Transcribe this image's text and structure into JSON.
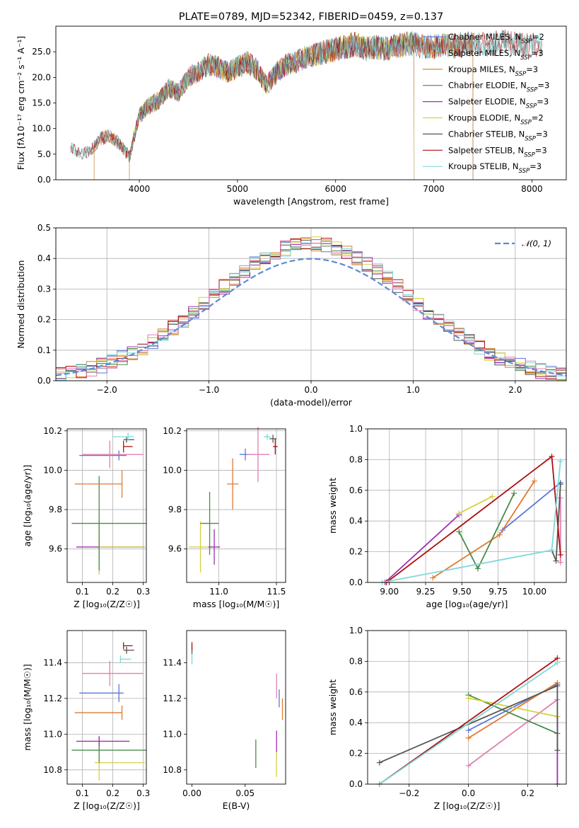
{
  "figure": {
    "title": "PLATE=0789, MJD=52342, FIBERID=0459, z=0.137"
  },
  "chart_data": [
    {
      "type": "line",
      "panel": "spectrum",
      "title": "PLATE=0789, MJD=52342, FIBERID=0459, z=0.137",
      "xlabel": "wavelength [Angstrom, rest frame]",
      "ylabel": "Flux [fλ10⁻¹⁷ erg cm⁻² s⁻¹ A⁻¹]",
      "xlim": [
        3150,
        8350
      ],
      "ylim": [
        0,
        30
      ],
      "xticks": [
        4000,
        5000,
        6000,
        7000,
        8000
      ],
      "yticks": [
        0,
        5,
        10,
        15,
        20,
        25
      ],
      "grid": false,
      "legend_position": "top-right",
      "x_anchor": [
        3300,
        3400,
        3500,
        3600,
        3700,
        3800,
        3900,
        4000,
        4100,
        4200,
        4300,
        4400,
        4500,
        4600,
        4700,
        4800,
        4900,
        5000,
        5100,
        5200,
        5300,
        5400,
        5500,
        5600,
        5700,
        5800,
        5900,
        6000,
        6100,
        6200,
        6300,
        6400,
        6500,
        6600,
        6700,
        6800,
        6900,
        7000,
        7100,
        7200,
        7300,
        7400,
        7500,
        7600,
        7700,
        7800,
        7900,
        8000,
        8100
      ],
      "y_anchor": [
        6.5,
        5.0,
        5.5,
        8.0,
        8.5,
        7.0,
        4.5,
        12.5,
        14.5,
        15.5,
        18.0,
        17.0,
        20.0,
        21.0,
        22.5,
        22.0,
        21.0,
        22.0,
        23.0,
        21.5,
        18.5,
        21.0,
        22.5,
        23.0,
        24.0,
        24.5,
        25.0,
        25.5,
        26.0,
        26.5,
        25.5,
        26.0,
        25.5,
        26.0,
        26.5,
        26.5,
        26.0,
        26.0,
        26.5,
        26.0,
        26.5,
        26.5,
        26.5,
        26.5,
        27.0,
        26.5,
        26.5,
        26.5,
        26.0
      ],
      "series": [
        {
          "name": "Chabrier MILES, N_SSP=2",
          "color": "#5a78d6",
          "x_range": [
            3540,
            7400
          ]
        },
        {
          "name": "Salpeter MILES, N_SSP=3",
          "color": "#e07a2f",
          "x_range": [
            3540,
            7400
          ]
        },
        {
          "name": "Kroupa MILES, N_SSP=3",
          "color": "#c8802a",
          "x_range": [
            3540,
            7400
          ]
        },
        {
          "name": "Chabrier ELODIE, N_SSP=3",
          "color": "#4a8a4a",
          "x_range": [
            3900,
            6800
          ]
        },
        {
          "name": "Salpeter ELODIE, N_SSP=3",
          "color": "#9b30b0",
          "x_range": [
            3900,
            6800
          ]
        },
        {
          "name": "Kroupa ELODIE, N_SSP=2",
          "color": "#d6d040",
          "x_range": [
            3900,
            6800
          ]
        },
        {
          "name": "Chabrier STELIB, N_SSP=3",
          "color": "#555555",
          "x_range": [
            3300,
            8100
          ]
        },
        {
          "name": "Salpeter STELIB, N_SSP=3",
          "color": "#b01010",
          "x_range": [
            3300,
            8100
          ]
        },
        {
          "name": "Kroupa STELIB, N_SSP=3",
          "color": "#7fd8d8",
          "x_range": [
            3300,
            8100
          ]
        }
      ],
      "legend_entries": [
        {
          "label": "Chabrier MILES, N",
          "sub": "SSP",
          "tail": "=2",
          "color": "#5a78d6"
        },
        {
          "label": "Salpeter MILES, N",
          "sub": "SSP",
          "tail": "=3",
          "color": "#e07a2f"
        },
        {
          "label": "Kroupa MILES, N",
          "sub": "SSP",
          "tail": "=3",
          "color": "#c8802a"
        },
        {
          "label": "Chabrier ELODIE, N",
          "sub": "SSP",
          "tail": "=3",
          "color": "#4a8a4a"
        },
        {
          "label": "Salpeter ELODIE, N",
          "sub": "SSP",
          "tail": "=3",
          "color": "#9b30b0"
        },
        {
          "label": "Kroupa ELODIE, N",
          "sub": "SSP",
          "tail": "=2",
          "color": "#d6d040"
        },
        {
          "label": "Chabrier STELIB, N",
          "sub": "SSP",
          "tail": "=3",
          "color": "#555555"
        },
        {
          "label": "Salpeter STELIB, N",
          "sub": "SSP",
          "tail": "=3",
          "color": "#b01010"
        },
        {
          "label": "Kroupa STELIB, N",
          "sub": "SSP",
          "tail": "=3",
          "color": "#7fd8d8"
        }
      ]
    },
    {
      "type": "histogram",
      "panel": "residuals",
      "xlabel": "(data-model)/error",
      "ylabel": "Normed distribution",
      "xlim": [
        -2.5,
        2.5
      ],
      "ylim": [
        0,
        0.5
      ],
      "xticks": [
        -2,
        -1,
        0,
        1,
        2
      ],
      "yticks": [
        0.0,
        0.1,
        0.2,
        0.3,
        0.4,
        0.5
      ],
      "grid": true,
      "legend_position": "top-right",
      "legend_entry": "𝒩(0, 1)",
      "reference_curve": {
        "name": "𝒩(0, 1)",
        "color": "#5a8ad6",
        "mean": 0,
        "sigma": 1
      },
      "bin_width": 0.1,
      "bin_range": [
        -2.5,
        2.5
      ],
      "series_colors": [
        "#5a78d6",
        "#e07a2f",
        "#4a8a4a",
        "#9b30b0",
        "#d6d040",
        "#555555",
        "#b01010",
        "#7fd8d8",
        "#e080b0"
      ]
    },
    {
      "type": "scatter",
      "panel": "Z-age",
      "xlabel": "Z [log₁₀(Z/Z☉)]",
      "ylabel": "age  [log₁₀(age/yr)]",
      "xlim": [
        0.05,
        0.31
      ],
      "ylim": [
        9.43,
        10.21
      ],
      "xticks": [
        0.1,
        0.2,
        0.3
      ],
      "yticks": [
        9.6,
        9.8,
        10.0,
        10.2
      ],
      "grid": true,
      "errorbars": [
        {
          "x": 0.155,
          "y": 9.61,
          "xerr": [
            0.075,
            0.15
          ],
          "yerr": 0.06,
          "color": "#9b30b0"
        },
        {
          "x": 0.155,
          "y": 9.61,
          "xerr": [
            0.0,
            0.15
          ],
          "yerr": 0.14,
          "color": "#d6d040"
        },
        {
          "x": 0.155,
          "y": 9.73,
          "xerr": [
            0.09,
            0.155
          ],
          "yerr": 0.24,
          "color": "#4a8a4a"
        },
        {
          "x": 0.23,
          "y": 9.93,
          "xerr": [
            0.155,
            0.0
          ],
          "yerr": 0.07,
          "color": "#e07a2f"
        },
        {
          "x": 0.22,
          "y": 10.075,
          "xerr": [
            0.13,
            0.025
          ],
          "yerr": 0.025,
          "color": "#5a78d6"
        },
        {
          "x": 0.19,
          "y": 10.08,
          "xerr": [
            0.09,
            0.11
          ],
          "yerr": 0.07,
          "color": "#e080b0"
        },
        {
          "x": 0.235,
          "y": 10.12,
          "xerr": [
            0.0,
            0.03
          ],
          "yerr": 0.03,
          "color": "#b01010"
        },
        {
          "x": 0.245,
          "y": 10.155,
          "xerr": [
            0.01,
            0.025
          ],
          "yerr": 0.015,
          "color": "#555555"
        },
        {
          "x": 0.25,
          "y": 10.17,
          "xerr": [
            0.05,
            0.02
          ],
          "yerr": 0.02,
          "color": "#7fd8d8"
        }
      ]
    },
    {
      "type": "scatter",
      "panel": "mass-age",
      "xlabel": "mass [log₁₀(M/M☉)]",
      "ylabel": "",
      "xlim": [
        10.72,
        11.58
      ],
      "ylim": [
        9.43,
        10.21
      ],
      "xticks": [
        11.0,
        11.5
      ],
      "yticks": [
        9.6,
        9.8,
        10.0,
        10.2
      ],
      "grid": true,
      "errorbars": [
        {
          "x": 10.84,
          "y": 9.61,
          "xerr": 0.1,
          "yerr": 0.13,
          "color": "#d6d040"
        },
        {
          "x": 10.92,
          "y": 9.73,
          "xerr": 0.08,
          "yerr": 0.16,
          "color": "#4a8a4a"
        },
        {
          "x": 10.96,
          "y": 9.61,
          "xerr": 0.05,
          "yerr": 0.09,
          "color": "#9b30b0"
        },
        {
          "x": 11.12,
          "y": 9.93,
          "xerr": 0.05,
          "yerr": 0.13,
          "color": "#e07a2f"
        },
        {
          "x": 11.23,
          "y": 10.08,
          "xerr": 0.05,
          "yerr": 0.03,
          "color": "#5a78d6"
        },
        {
          "x": 11.34,
          "y": 10.08,
          "xerr": 0.1,
          "yerr": 0.14,
          "color": "#e080b0"
        },
        {
          "x": 11.42,
          "y": 10.17,
          "xerr": 0.03,
          "yerr": 0.015,
          "color": "#7fd8d8"
        },
        {
          "x": 11.47,
          "y": 10.16,
          "xerr": 0.03,
          "yerr": 0.02,
          "color": "#555555"
        },
        {
          "x": 11.49,
          "y": 10.12,
          "xerr": 0.02,
          "yerr": 0.04,
          "color": "#b01010"
        }
      ]
    },
    {
      "type": "line",
      "panel": "age-massweight",
      "xlabel": "age  [log₁₀(age/yr)]",
      "ylabel": "mass weight",
      "xlim": [
        8.85,
        10.22
      ],
      "ylim": [
        0,
        1
      ],
      "xticks": [
        9.0,
        9.25,
        9.5,
        9.75,
        10.0
      ],
      "yticks": [
        0.0,
        0.2,
        0.4,
        0.6,
        0.8,
        1.0
      ],
      "grid": true,
      "series": [
        {
          "name": "Chabrier MILES",
          "color": "#5a78d6",
          "x": [
            9.78,
            10.18
          ],
          "y": [
            0.34,
            0.65
          ]
        },
        {
          "name": "Salpeter MILES",
          "color": "#e07a2f",
          "x": [
            9.3,
            9.76,
            10.0
          ],
          "y": [
            0.03,
            0.31,
            0.66
          ]
        },
        {
          "name": "Kroupa MILES",
          "color": "#e080b0",
          "x": [
            10.18,
            10.18
          ],
          "y": [
            0.13,
            0.55
          ]
        },
        {
          "name": "Chabrier ELODIE",
          "color": "#4a8a4a",
          "x": [
            9.48,
            9.61,
            9.86
          ],
          "y": [
            0.33,
            0.09,
            0.58
          ]
        },
        {
          "name": "Salpeter ELODIE",
          "color": "#9b30b0",
          "x": [
            8.97,
            9.48
          ],
          "y": [
            0.0,
            0.44
          ]
        },
        {
          "name": "Kroupa ELODIE",
          "color": "#d6d040",
          "x": [
            9.48,
            9.71
          ],
          "y": [
            0.45,
            0.56
          ]
        },
        {
          "name": "Chabrier STELIB",
          "color": "#555555",
          "x": [
            10.12,
            10.15,
            10.18
          ],
          "y": [
            0.21,
            0.14,
            0.64
          ]
        },
        {
          "name": "Salpeter STELIB",
          "color": "#b01010",
          "x": [
            8.98,
            10.12,
            10.18
          ],
          "y": [
            0.0,
            0.82,
            0.18
          ]
        },
        {
          "name": "Kroupa STELIB",
          "color": "#7fd8d8",
          "x": [
            8.95,
            10.12,
            10.18
          ],
          "y": [
            0.0,
            0.21,
            0.79
          ]
        }
      ]
    },
    {
      "type": "scatter",
      "panel": "Z-mass",
      "xlabel": "Z [log₁₀(Z/Z☉)]",
      "ylabel": "mass [log₁₀(M/M☉)]",
      "xlim": [
        0.05,
        0.31
      ],
      "ylim": [
        10.72,
        11.58
      ],
      "xticks": [
        0.1,
        0.2,
        0.3
      ],
      "yticks": [
        10.8,
        11.0,
        11.2,
        11.4
      ],
      "grid": true,
      "errorbars": [
        {
          "x": 0.155,
          "y": 10.84,
          "xerr": [
            0.015,
            0.15
          ],
          "yerr": 0.1,
          "color": "#d6d040"
        },
        {
          "x": 0.155,
          "y": 10.91,
          "xerr": [
            0.09,
            0.155
          ],
          "yerr": 0.07,
          "color": "#4a8a4a"
        },
        {
          "x": 0.155,
          "y": 10.96,
          "xerr": [
            0.075,
            0.1
          ],
          "yerr": 0.03,
          "color": "#9b30b0"
        },
        {
          "x": 0.23,
          "y": 11.12,
          "xerr": [
            0.155,
            0.0
          ],
          "yerr": 0.04,
          "color": "#e07a2f"
        },
        {
          "x": 0.22,
          "y": 11.23,
          "xerr": [
            0.13,
            0.015
          ],
          "yerr": 0.05,
          "color": "#5a78d6"
        },
        {
          "x": 0.19,
          "y": 11.34,
          "xerr": [
            0.09,
            0.11
          ],
          "yerr": 0.07,
          "color": "#e080b0"
        },
        {
          "x": 0.225,
          "y": 11.42,
          "xerr": [
            0.0,
            0.035
          ],
          "yerr": 0.02,
          "color": "#7fd8d8"
        },
        {
          "x": 0.245,
          "y": 11.47,
          "xerr": [
            0.01,
            0.025
          ],
          "yerr": 0.02,
          "color": "#555555"
        },
        {
          "x": 0.235,
          "y": 11.495,
          "xerr": [
            0.0,
            0.03
          ],
          "yerr": 0.02,
          "color": "#b01010"
        }
      ]
    },
    {
      "type": "scatter",
      "panel": "EBV-mass",
      "xlabel": "E(B-V)",
      "ylabel": "",
      "xlim": [
        -0.005,
        0.088
      ],
      "ylim": [
        10.72,
        11.58
      ],
      "xticks": [
        0.0,
        0.05
      ],
      "yticks": [
        10.8,
        11.0,
        11.2,
        11.4
      ],
      "grid": false,
      "errorbars": [
        {
          "x": 0.0,
          "y": 11.42,
          "xerr": 0,
          "yerr": 0.03,
          "color": "#7fd8d8"
        },
        {
          "x": 0.0,
          "y": 11.47,
          "xerr": 0,
          "yerr": 0.02,
          "color": "#555555"
        },
        {
          "x": 0.0,
          "y": 11.495,
          "xerr": 0,
          "yerr": 0.02,
          "color": "#b01010"
        },
        {
          "x": 0.06,
          "y": 10.89,
          "xerr": 0,
          "yerr": 0.08,
          "color": "#4a8a4a"
        },
        {
          "x": 0.0795,
          "y": 10.84,
          "xerr": 0,
          "yerr": 0.08,
          "color": "#d6d040"
        },
        {
          "x": 0.0795,
          "y": 10.96,
          "xerr": 0,
          "yerr": 0.06,
          "color": "#9b30b0"
        },
        {
          "x": 0.0795,
          "y": 11.27,
          "xerr": 0,
          "yerr": 0.07,
          "color": "#e080b0"
        },
        {
          "x": 0.082,
          "y": 11.2,
          "xerr": 0,
          "yerr": 0.05,
          "color": "#5a78d6"
        },
        {
          "x": 0.085,
          "y": 11.14,
          "xerr": 0,
          "yerr": 0.06,
          "color": "#e07a2f"
        }
      ]
    },
    {
      "type": "line",
      "panel": "Z-massweight",
      "xlabel": "Z [log₁₀(Z/Z☉)]",
      "ylabel": "mass weight",
      "xlim": [
        -0.34,
        0.33
      ],
      "ylim": [
        0,
        1
      ],
      "xticks": [
        -0.2,
        0.0,
        0.2
      ],
      "yticks": [
        0.0,
        0.2,
        0.4,
        0.6,
        0.8,
        1.0
      ],
      "grid": true,
      "series": [
        {
          "name": "Chabrier MILES",
          "color": "#5a78d6",
          "x": [
            0.0,
            0.3
          ],
          "y": [
            0.35,
            0.65
          ]
        },
        {
          "name": "Salpeter MILES",
          "color": "#e07a2f",
          "x": [
            0.0,
            0.3
          ],
          "y": [
            0.3,
            0.66
          ]
        },
        {
          "name": "Kroupa MILES",
          "color": "#e080b0",
          "x": [
            0.0,
            0.3
          ],
          "y": [
            0.12,
            0.55
          ]
        },
        {
          "name": "Chabrier ELODIE",
          "color": "#4a8a4a",
          "x": [
            0.0,
            0.3
          ],
          "y": [
            0.58,
            0.33
          ]
        },
        {
          "name": "Salpeter ELODIE",
          "color": "#9b30b0",
          "x": [
            0.3,
            0.3
          ],
          "y": [
            0.0,
            0.44
          ]
        },
        {
          "name": "Kroupa ELODIE",
          "color": "#d6d040",
          "x": [
            0.0,
            0.3
          ],
          "y": [
            0.56,
            0.44
          ]
        },
        {
          "name": "Chabrier STELIB",
          "color": "#555555",
          "x": [
            -0.3,
            0.3,
            0.3
          ],
          "y": [
            0.14,
            0.64,
            0.22
          ]
        },
        {
          "name": "Salpeter STELIB",
          "color": "#b01010",
          "x": [
            -0.3,
            0.3
          ],
          "y": [
            0.0,
            0.82
          ]
        },
        {
          "name": "Kroupa STELIB",
          "color": "#7fd8d8",
          "x": [
            -0.3,
            0.3
          ],
          "y": [
            0.0,
            0.79
          ]
        }
      ]
    }
  ]
}
